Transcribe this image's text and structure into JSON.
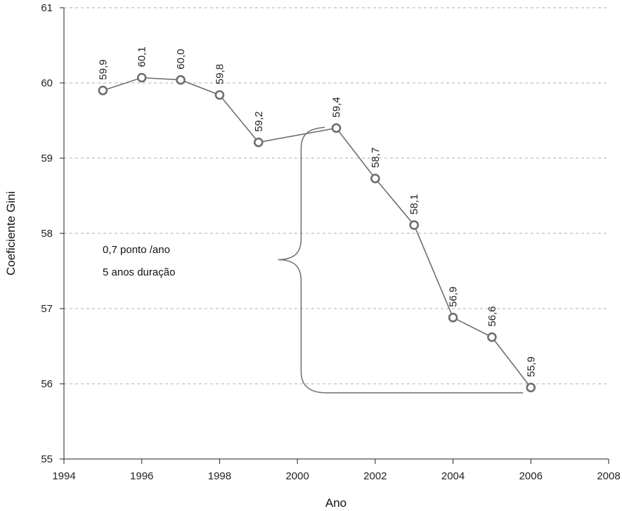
{
  "chart_data": {
    "type": "line",
    "title": "",
    "xlabel": "Ano",
    "ylabel": "Coeficiente Gini",
    "xlim": [
      1994,
      2008
    ],
    "ylim": [
      55,
      61
    ],
    "x_ticks": [
      "1994",
      "1996",
      "1998",
      "2000",
      "2002",
      "2004",
      "2006",
      "2008"
    ],
    "y_ticks": [
      "55",
      "56",
      "57",
      "58",
      "59",
      "60",
      "61"
    ],
    "grid": "horizontal dashed",
    "legend": "none",
    "series": [
      {
        "x": [
          1995,
          1996,
          1997,
          1998,
          1999,
          2001,
          2002,
          2003,
          2004,
          2005,
          2006
        ],
        "values": [
          59.9,
          60.07,
          60.04,
          59.84,
          59.21,
          59.4,
          58.73,
          58.11,
          56.88,
          56.62,
          55.95
        ],
        "labels": [
          "59,9",
          "60,1",
          "60,0",
          "59,8",
          "59,2",
          "59,4",
          "58,7",
          "58,1",
          "56,9",
          "56,6",
          "55,9"
        ]
      }
    ],
    "annotations": {
      "bracket": {
        "x_start": 2000.7,
        "x_end": 2005.8,
        "y_top": 59.41,
        "y_bottom": 55.88,
        "tip_x": 1999.5,
        "tip_y": 57.65
      },
      "lines": [
        "0,7 ponto /ano",
        "5 anos duração"
      ]
    },
    "colors": {
      "line": "#6e6e6e",
      "marker": "#6e6e6e",
      "grid": "#c8c8c8",
      "axis": "#222222"
    }
  }
}
